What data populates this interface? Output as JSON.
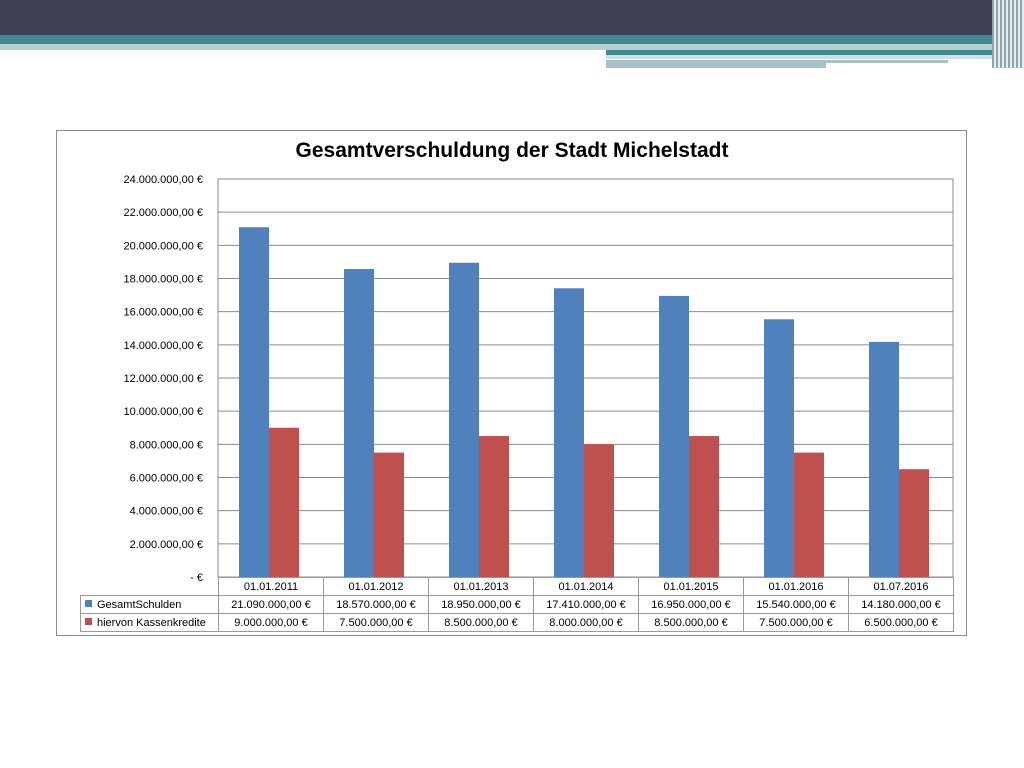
{
  "slide": {
    "colors": {
      "dark_band": "#404054",
      "teal_band": "#3e8a8c",
      "light_band": "#b7cfd3"
    }
  },
  "chart_data": {
    "type": "bar",
    "title": "Gesamtverschuldung der Stadt Michelstadt",
    "xlabel": "",
    "ylabel": "",
    "ylim": [
      0,
      24000000
    ],
    "yticks": [
      0,
      2000000,
      4000000,
      6000000,
      8000000,
      10000000,
      12000000,
      14000000,
      16000000,
      18000000,
      20000000,
      22000000,
      24000000
    ],
    "ytick_labels": [
      "-   €",
      "2.000.000,00 €",
      "4.000.000,00 €",
      "6.000.000,00 €",
      "8.000.000,00 €",
      "10.000.000,00 €",
      "12.000.000,00 €",
      "14.000.000,00 €",
      "16.000.000,00 €",
      "18.000.000,00 €",
      "20.000.000,00 €",
      "22.000.000,00 €",
      "24.000.000,00 €"
    ],
    "grid": true,
    "legend": "data table",
    "categories": [
      "01.01.2011",
      "01.01.2012",
      "01.01.2013",
      "01.01.2014",
      "01.01.2015",
      "01.01.2016",
      "01.07.2016"
    ],
    "series": [
      {
        "name": "GesamtSchulden",
        "color": "#4f81bd",
        "values": [
          21090000,
          18570000,
          18950000,
          17410000,
          16950000,
          15540000,
          14180000
        ],
        "labels": [
          "21.090.000,00 €",
          "18.570.000,00 €",
          "18.950.000,00 €",
          "17.410.000,00 €",
          "16.950.000,00 €",
          "15.540.000,00 €",
          "14.180.000,00 €"
        ]
      },
      {
        "name": "hiervon Kassenkredite",
        "color": "#c0504d",
        "values": [
          9000000,
          7500000,
          8500000,
          8000000,
          8500000,
          7500000,
          6500000
        ],
        "labels": [
          "9.000.000,00 €",
          "7.500.000,00 €",
          "8.500.000,00 €",
          "8.000.000,00 €",
          "8.500.000,00 €",
          "7.500.000,00 €",
          "6.500.000,00 €"
        ]
      }
    ]
  }
}
